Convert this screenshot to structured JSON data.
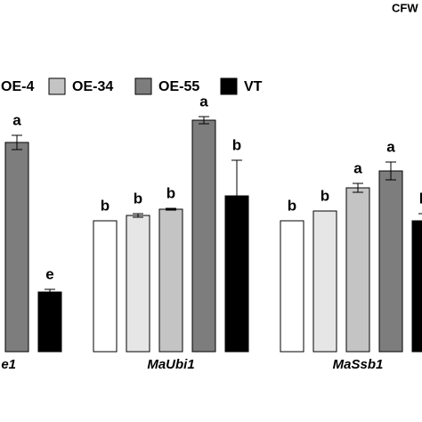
{
  "chart_data": {
    "type": "bar",
    "corner_label": "CFW",
    "categories": [
      "e1",
      "MaUbi1",
      "MaSsb1"
    ],
    "ylim": [
      0,
      300
    ],
    "series": [
      {
        "name": null,
        "color": "#ffffff",
        "values": [
          null,
          147,
          147
        ],
        "errors": [
          null,
          0,
          0
        ],
        "letters": [
          null,
          "b",
          "b"
        ]
      },
      {
        "name": "OE-4",
        "color": "#e6e6e6",
        "values": [
          null,
          153,
          158
        ],
        "errors": [
          null,
          2,
          0
        ],
        "letters": [
          null,
          "b",
          "b"
        ]
      },
      {
        "name": "OE-34",
        "color": "#c4c4c4",
        "values": [
          null,
          160,
          184
        ],
        "errors": [
          null,
          1,
          5
        ],
        "letters": [
          null,
          "b",
          "a"
        ]
      },
      {
        "name": "OE-55",
        "color": "#7d7d7d",
        "values": [
          235,
          260,
          203
        ],
        "errors": [
          8,
          4,
          10
        ],
        "letters": [
          "a",
          "a",
          "a"
        ]
      },
      {
        "name": "VT",
        "color": "#000000",
        "values": [
          67,
          175,
          147
        ],
        "errors": [
          3,
          40,
          8
        ],
        "letters": [
          "e",
          "b",
          "b"
        ]
      }
    ]
  }
}
